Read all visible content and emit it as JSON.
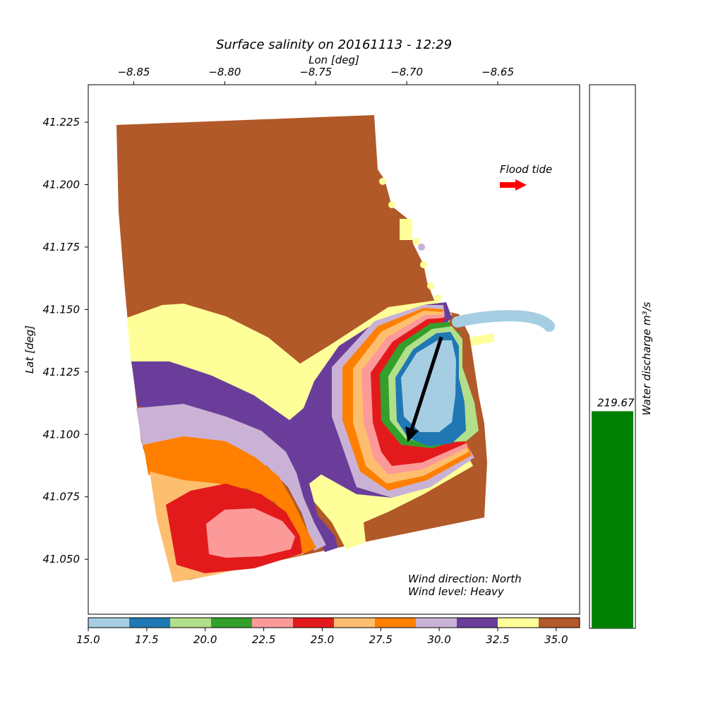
{
  "chart_data": {
    "type": "heatmap",
    "title": "Surface salinity on 20161113 - 12:29",
    "xlabel": "Lon [deg]",
    "ylabel": "Lat [deg]",
    "xlim": [
      -8.875,
      -8.605
    ],
    "ylim": [
      41.028,
      41.24
    ],
    "x_ticks": [
      -8.85,
      -8.8,
      -8.75,
      -8.7,
      -8.65
    ],
    "x_tick_labels": [
      "−8.85",
      "−8.80",
      "−8.75",
      "−8.70",
      "−8.65"
    ],
    "y_ticks": [
      41.05,
      41.075,
      41.1,
      41.125,
      41.15,
      41.175,
      41.2,
      41.225
    ],
    "y_tick_labels": [
      "41.050",
      "41.075",
      "41.100",
      "41.125",
      "41.150",
      "41.175",
      "41.200",
      "41.225"
    ],
    "colorbar": {
      "range": [
        15.0,
        36.0
      ],
      "ticks": [
        15.0,
        17.5,
        20.0,
        22.5,
        25.0,
        27.5,
        30.0,
        32.5,
        35.0
      ],
      "tick_labels": [
        "15.0",
        "17.5",
        "20.0",
        "22.5",
        "25.0",
        "27.5",
        "30.0",
        "32.5",
        "35.0"
      ],
      "colors": [
        "#a6cee3",
        "#1f78b4",
        "#b2df8a",
        "#33a02c",
        "#fb9a99",
        "#e31a1c",
        "#fdbf6f",
        "#ff7f00",
        "#cab2d6",
        "#6a3d9a",
        "#ffff99",
        "#b15928"
      ]
    },
    "annotations": {
      "tide": "Flood tide",
      "wind_direction": "Wind direction: North",
      "wind_level": "Wind level: Heavy"
    },
    "wind_arrow": {
      "from": [
        -8.681,
        41.139
      ],
      "to": [
        -8.699,
        41.098
      ]
    },
    "discharge": {
      "label": "Water discharge m³/s",
      "value": 219.67,
      "value_label": "219.67",
      "max": 550,
      "color": "#008000"
    },
    "colors": {
      "tide_arrow": "#ff0000",
      "wind_arrow": "#000000"
    }
  }
}
